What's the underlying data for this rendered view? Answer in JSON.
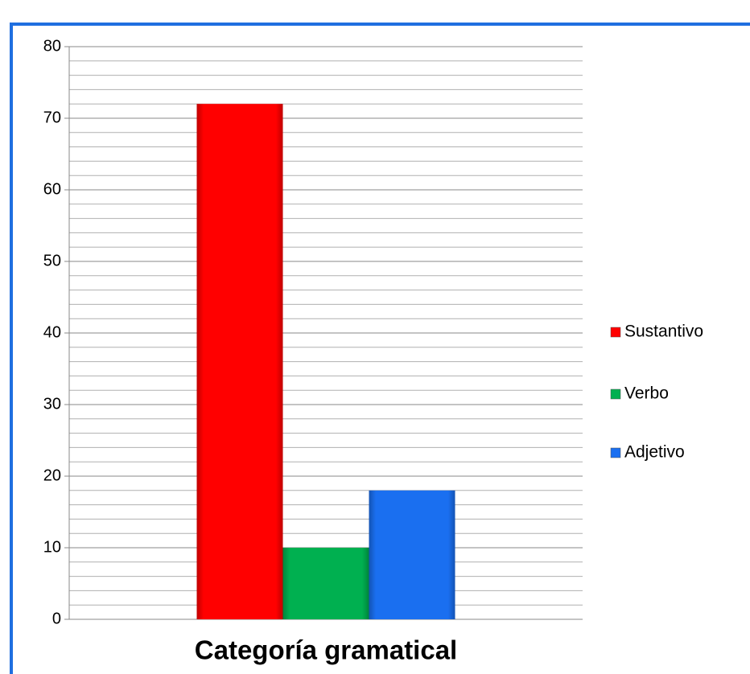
{
  "chart_data": {
    "type": "bar",
    "categories": [
      "Categoría gramatical"
    ],
    "series": [
      {
        "name": "Sustantivo",
        "color": "#ff0000",
        "values": [
          72
        ]
      },
      {
        "name": "Verbo",
        "color": "#00b050",
        "values": [
          10
        ]
      },
      {
        "name": "Adjetivo",
        "color": "#1a6ff0",
        "values": [
          18
        ]
      }
    ],
    "ylim": [
      0,
      80
    ],
    "yticks": [
      0,
      10,
      20,
      30,
      40,
      50,
      60,
      70,
      80
    ],
    "grid": true,
    "minor_grid": true,
    "legend": "right"
  }
}
